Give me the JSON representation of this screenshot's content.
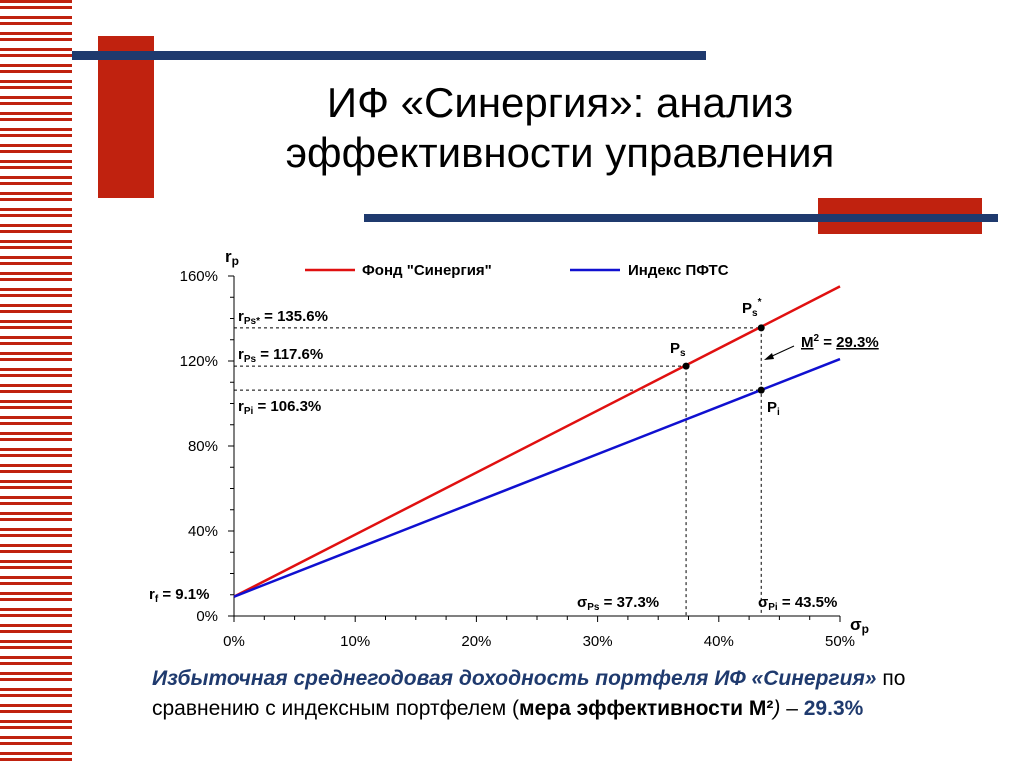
{
  "slide": {
    "title_line1": "ИФ «Синергия»: анализ",
    "title_line2": "эффективности управления",
    "caption": {
      "part1": "Избыточная среднегодовая доходность портфеля ИФ «Синергия»",
      "part2": " по сравнению с индексным портфелем (",
      "part3": "мера эффективности М²",
      "part4": ")",
      "part5": " – ",
      "part6": "29.3%"
    },
    "colors": {
      "stripe": "#c0220f",
      "navy": "#1f3a6e",
      "fund": "#e01010",
      "index": "#1010d0"
    }
  },
  "chart_data": {
    "type": "line",
    "y_axis_label": "r",
    "y_axis_label_sub": "p",
    "x_axis_label": "σ",
    "x_axis_label_sub": "p",
    "xlim": [
      0,
      50
    ],
    "ylim": [
      0,
      160
    ],
    "x_ticks": [
      0,
      10,
      20,
      30,
      40,
      50
    ],
    "x_tick_labels": [
      "0%",
      "10%",
      "20%",
      "30%",
      "40%",
      "50%"
    ],
    "y_ticks": [
      0,
      40,
      80,
      120,
      160
    ],
    "y_tick_labels": [
      "0%",
      "40%",
      "80%",
      "120%",
      "160%"
    ],
    "legend_position": "top",
    "series": [
      {
        "name": "Фонд \"Синергия\"",
        "color": "#e01010",
        "x": [
          0,
          50
        ],
        "y": [
          9.1,
          155.1
        ]
      },
      {
        "name": "Индекс ПФТС",
        "color": "#1010d0",
        "x": [
          0,
          50
        ],
        "y": [
          9.1,
          120.9
        ]
      }
    ],
    "points": [
      {
        "name": "P",
        "sub": "s",
        "x": 37.3,
        "y": 117.6
      },
      {
        "name": "P",
        "sub": "s",
        "sup": "*",
        "x": 43.5,
        "y": 135.6
      },
      {
        "name": "P",
        "sub": "i",
        "x": 43.5,
        "y": 106.3
      }
    ],
    "annotations": {
      "rps_star": {
        "r": "r",
        "sub": "Ps*",
        "text": " = 135.6%",
        "y": 135.6
      },
      "rps": {
        "r": "r",
        "sub": "Ps",
        "text": " = 117.6%",
        "y": 117.6
      },
      "rpi": {
        "r": "r",
        "sub": "Pi",
        "text": " = 106.3%",
        "y": 106.3
      },
      "rf": {
        "r": "r",
        "sub": "f",
        "text": " = 9.1%",
        "y": 9.1
      },
      "sps": {
        "sym": "σ",
        "sub": "Ps",
        "text": " = 37.3%",
        "x": 37.3
      },
      "spi": {
        "sym": "σ",
        "sub": "Pi",
        "text": " = 43.5%",
        "x": 43.5
      },
      "m2": {
        "label": "M",
        "sup": "2",
        "text": " = ",
        "value": "29.3%"
      }
    }
  }
}
